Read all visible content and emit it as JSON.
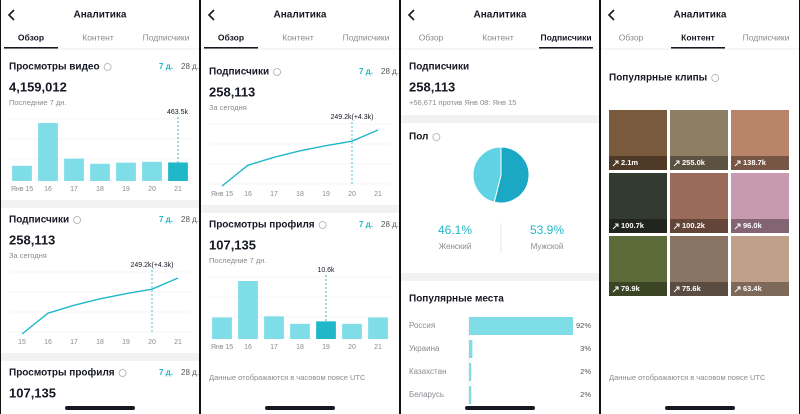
{
  "screens": [
    {
      "title": "Аналитика",
      "tabs": [
        "Обзор",
        "Контент",
        "Подписчики"
      ],
      "active_tab": 0,
      "sections": [
        {
          "type": "bar",
          "title": "Просмотры видео",
          "info": true,
          "periods": [
            "7 д.",
            "28 д."
          ],
          "active_period": 0,
          "total": "4,159,012",
          "caption": "Последние 7 дн.",
          "categories": [
            "Янв 15",
            "16",
            "17",
            "18",
            "19",
            "20",
            "21"
          ],
          "values": [
            380,
            1450,
            560,
            430,
            460,
            480,
            463.5
          ],
          "value_labels": [
            null,
            null,
            null,
            null,
            null,
            null,
            "463.5k"
          ]
        },
        {
          "type": "line",
          "title": "Подписчики",
          "info": true,
          "periods": [
            "7 д.",
            "28 д."
          ],
          "active_period": 0,
          "total": "258,113",
          "caption": "За сегодня",
          "categories": [
            "15",
            "16",
            "17",
            "18",
            "19",
            "20",
            "21"
          ],
          "values": [
            232,
            240,
            243,
            245.5,
            247.5,
            249.2,
            253.5
          ],
          "value_labels": [
            null,
            null,
            null,
            null,
            null,
            "249.2k(+4.3k)",
            null
          ]
        },
        {
          "type": "text",
          "title": "Просмотры профиля",
          "info": true,
          "periods": [
            "7 д.",
            "28 д."
          ],
          "active_period": 0,
          "total": "107,135"
        }
      ]
    },
    {
      "title": "Аналитика",
      "tabs": [
        "Обзор",
        "Контент",
        "Подписчики"
      ],
      "active_tab": 0,
      "sections": [
        {
          "type": "line",
          "title": "Подписчики",
          "info": true,
          "periods": [
            "7 д.",
            "28 д."
          ],
          "active_period": 0,
          "total": "258,113",
          "caption": "За сегодня",
          "categories": [
            "Янв 15",
            "16",
            "17",
            "18",
            "19",
            "20",
            "21"
          ],
          "values": [
            232,
            240,
            243,
            245.5,
            247.5,
            249.2,
            253.5
          ],
          "value_labels": [
            null,
            null,
            null,
            null,
            null,
            "249.2k(+4.3k)",
            null
          ]
        },
        {
          "type": "bar",
          "title": "Просмотры профиля",
          "info": true,
          "periods": [
            "7 д.",
            "28 д."
          ],
          "active_period": 0,
          "total": "107,135",
          "caption": "Последние 7 дн.",
          "categories": [
            "Янв 15",
            "16",
            "17",
            "18",
            "19",
            "20",
            "21"
          ],
          "values": [
            12.9,
            34.8,
            13.6,
            9.1,
            10.6,
            9.1,
            12.9
          ],
          "value_labels": [
            null,
            null,
            null,
            null,
            "10.6k",
            null,
            null
          ]
        }
      ],
      "footer": "Данные отображаются в часовом поясе UTC"
    },
    {
      "title": "Аналитика",
      "tabs": [
        "Обзор",
        "Контент",
        "Подписчики"
      ],
      "active_tab": 2,
      "sections": [
        {
          "type": "text",
          "title": "Подписчики",
          "info": false,
          "total": "258,113",
          "caption": "+56,671 против Янв 08: Янв 15"
        },
        {
          "type": "pie",
          "title": "Пол",
          "info": true,
          "names": [
            "Женский",
            "Мужской"
          ],
          "values": [
            46.1,
            53.9
          ],
          "value_labels": [
            "46.1%",
            "53.9%"
          ],
          "colors": [
            "#5fd3e3",
            "#1aa8c4"
          ]
        },
        {
          "type": "hbar",
          "title": "Популярные места",
          "info": false,
          "categories": [
            "Россия",
            "Украина",
            "Казахстан",
            "Беларусь"
          ],
          "values": [
            92,
            3,
            2,
            2
          ],
          "value_labels": [
            "92%",
            "3%",
            "2%",
            "2%"
          ]
        }
      ]
    },
    {
      "title": "Аналитика",
      "tabs": [
        "Обзор",
        "Контент",
        "Подписчики"
      ],
      "active_tab": 1,
      "sections": [
        {
          "type": "clips",
          "title": "Популярные клипы",
          "info": true,
          "caption": "Последние 7 дн.",
          "views": [
            "2.1m",
            "255.0k",
            "138.7k",
            "100.7k",
            "100.2k",
            "96.0k",
            "79.9k",
            "75.6k",
            "63.4k"
          ]
        }
      ],
      "footer": "Данные отображаются в часовом поясе UTC"
    }
  ]
}
